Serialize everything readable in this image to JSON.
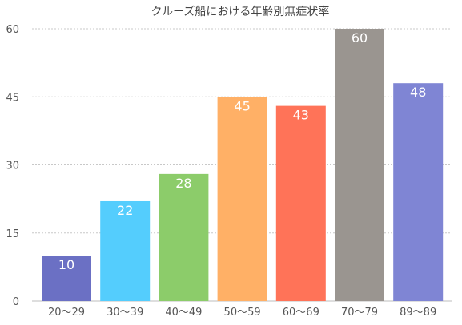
{
  "chart_data": {
    "type": "bar",
    "title": "クルーズ船における年齢別無症状率",
    "xlabel": "",
    "ylabel": "",
    "categories": [
      "20〜29",
      "30〜39",
      "40〜49",
      "50〜59",
      "60〜69",
      "70〜79",
      "89〜89"
    ],
    "values": [
      10,
      22,
      28,
      45,
      43,
      60,
      48
    ],
    "data_labels": [
      "10",
      "22",
      "28",
      "45",
      "43",
      "60",
      "48"
    ],
    "ylim": [
      0,
      60
    ],
    "yticks": [
      "0",
      "15",
      "30",
      "45",
      "60"
    ],
    "grid": true,
    "legend": "none",
    "colors": [
      "#6b70c4",
      "#54cdfd",
      "#8ccc6a",
      "#ffb066",
      "#ff7358",
      "#9a9590",
      "#7f85d4"
    ]
  }
}
